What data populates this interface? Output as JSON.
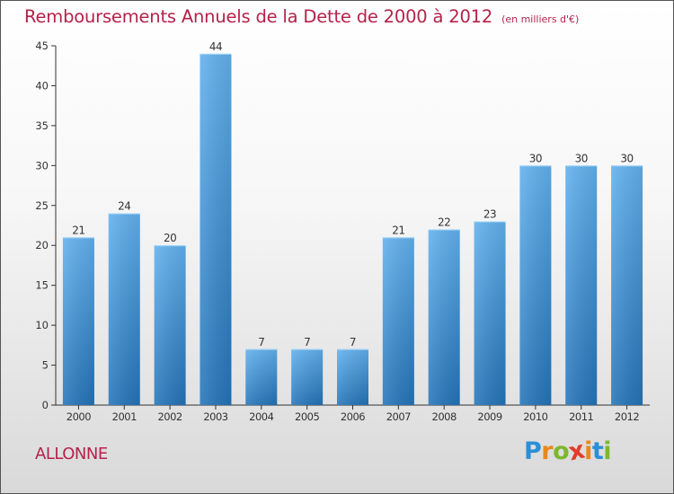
{
  "header": {
    "title": "Remboursements Annuels de la Dette de 2000 à 2012",
    "subtitle": "(en milliers d'€)"
  },
  "footer": {
    "commune": "ALLONNE",
    "logo_text": "Proxiti"
  },
  "colors": {
    "title": "#b5224a",
    "bar_top": "#62b1ee",
    "bar_bottom": "#2474b8"
  },
  "chart_data": {
    "type": "bar",
    "title": "Remboursements Annuels de la Dette de 2000 à 2012",
    "subtitle": "(en milliers d'€)",
    "categories": [
      "2000",
      "2001",
      "2002",
      "2003",
      "2004",
      "2005",
      "2006",
      "2007",
      "2008",
      "2009",
      "2010",
      "2011",
      "2012"
    ],
    "values": [
      21,
      24,
      20,
      44,
      7,
      7,
      7,
      21,
      22,
      23,
      30,
      30,
      30
    ],
    "data_labels": [
      "21",
      "24",
      "20",
      "44",
      "7",
      "7",
      "7",
      "21",
      "22",
      "23",
      "30",
      "30",
      "30"
    ],
    "ylim": [
      0,
      45
    ],
    "yticks": [
      0,
      5,
      10,
      15,
      20,
      25,
      30,
      35,
      40,
      45
    ],
    "xlabel": "",
    "ylabel": "",
    "grid": false,
    "legend": "none"
  }
}
